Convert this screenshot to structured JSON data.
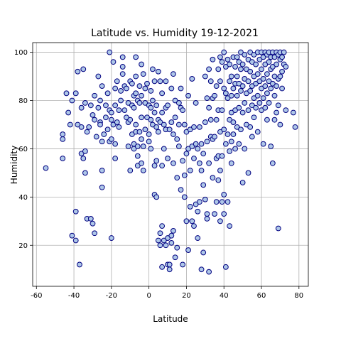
{
  "chart_data": {
    "type": "scatter",
    "title": "Latitude vs. Humidity 19-12-2021",
    "xlabel": "Latitude",
    "ylabel": "Humidity",
    "xlim": [
      -62,
      85
    ],
    "ylim": [
      3,
      104
    ],
    "xticks": [
      -60,
      -40,
      -20,
      0,
      20,
      40,
      60,
      80
    ],
    "yticks": [
      20,
      40,
      60,
      80,
      100
    ],
    "grid": true,
    "legend": "none",
    "colors": {
      "marker_fill": "#aec7e8",
      "marker_edge": "#000080"
    },
    "points": [
      [
        -55,
        52
      ],
      [
        -46,
        56
      ],
      [
        -46,
        64
      ],
      [
        -46,
        66
      ],
      [
        -44,
        83
      ],
      [
        -43,
        75
      ],
      [
        -42,
        70
      ],
      [
        -41,
        80
      ],
      [
        -41,
        24
      ],
      [
        -39,
        83
      ],
      [
        -39,
        34
      ],
      [
        -39,
        22
      ],
      [
        -38,
        70
      ],
      [
        -38,
        92
      ],
      [
        -37,
        12
      ],
      [
        -36,
        58
      ],
      [
        -36,
        69
      ],
      [
        -36,
        77
      ],
      [
        -35,
        56
      ],
      [
        -35,
        93
      ],
      [
        -34,
        79
      ],
      [
        -34,
        50
      ],
      [
        -34,
        59
      ],
      [
        -33,
        31
      ],
      [
        -33,
        67
      ],
      [
        -32,
        69
      ],
      [
        -31,
        78
      ],
      [
        -31,
        31
      ],
      [
        -30,
        29
      ],
      [
        -30,
        74
      ],
      [
        -29,
        72
      ],
      [
        -29,
        82
      ],
      [
        -29,
        25
      ],
      [
        -28,
        65
      ],
      [
        -27,
        90
      ],
      [
        -27,
        77
      ],
      [
        -26,
        71
      ],
      [
        -26,
        80
      ],
      [
        -26,
        70
      ],
      [
        -25,
        44
      ],
      [
        -25,
        86
      ],
      [
        -25,
        63
      ],
      [
        -25,
        51
      ],
      [
        -24,
        66
      ],
      [
        -23,
        73
      ],
      [
        -23,
        78
      ],
      [
        -22,
        68
      ],
      [
        -22,
        83
      ],
      [
        -21,
        63
      ],
      [
        -21,
        100
      ],
      [
        -21,
        76
      ],
      [
        -20,
        75
      ],
      [
        -20,
        72
      ],
      [
        -20,
        64
      ],
      [
        -20,
        23
      ],
      [
        -19,
        96
      ],
      [
        -19,
        70
      ],
      [
        -18,
        85
      ],
      [
        -18,
        78
      ],
      [
        -18,
        56
      ],
      [
        -18,
        62
      ],
      [
        -17,
        88
      ],
      [
        -17,
        71
      ],
      [
        -16,
        69
      ],
      [
        -16,
        76
      ],
      [
        -15,
        80
      ],
      [
        -15,
        84
      ],
      [
        -14,
        94
      ],
      [
        -14,
        91
      ],
      [
        -14,
        98
      ],
      [
        -13,
        86
      ],
      [
        -13,
        76
      ],
      [
        -12,
        85
      ],
      [
        -12,
        73
      ],
      [
        -11,
        79
      ],
      [
        -11,
        71
      ],
      [
        -11,
        61
      ],
      [
        -10,
        88
      ],
      [
        -10,
        51
      ],
      [
        -10,
        72
      ],
      [
        -9,
        87
      ],
      [
        -9,
        78
      ],
      [
        -9,
        66
      ],
      [
        -8,
        82
      ],
      [
        -8,
        77
      ],
      [
        -8,
        62
      ],
      [
        -8,
        60
      ],
      [
        -7,
        98
      ],
      [
        -7,
        90
      ],
      [
        -7,
        83
      ],
      [
        -7,
        70
      ],
      [
        -7,
        67
      ],
      [
        -6,
        80
      ],
      [
        -6,
        61
      ],
      [
        -6,
        57
      ],
      [
        -6,
        53
      ],
      [
        -5,
        86
      ],
      [
        -5,
        79
      ],
      [
        -5,
        67
      ],
      [
        -4,
        95
      ],
      [
        -4,
        82
      ],
      [
        -4,
        73
      ],
      [
        -4,
        64
      ],
      [
        -4,
        54
      ],
      [
        -3,
        91
      ],
      [
        -3,
        61
      ],
      [
        -3,
        51
      ],
      [
        -2,
        85
      ],
      [
        -2,
        79
      ],
      [
        -2,
        68
      ],
      [
        -1,
        87
      ],
      [
        -1,
        73
      ],
      [
        0,
        78
      ],
      [
        0,
        66
      ],
      [
        0,
        63
      ],
      [
        1,
        84
      ],
      [
        1,
        77
      ],
      [
        1,
        72
      ],
      [
        1,
        60
      ],
      [
        2,
        93
      ],
      [
        2,
        80
      ],
      [
        2,
        70
      ],
      [
        3,
        88
      ],
      [
        3,
        75
      ],
      [
        3,
        41
      ],
      [
        3,
        53
      ],
      [
        4,
        78
      ],
      [
        4,
        69
      ],
      [
        4,
        40
      ],
      [
        4,
        55
      ],
      [
        5,
        92
      ],
      [
        5,
        72
      ],
      [
        5,
        67
      ],
      [
        5,
        22
      ],
      [
        6,
        88
      ],
      [
        6,
        71
      ],
      [
        6,
        25
      ],
      [
        6,
        20
      ],
      [
        7,
        83
      ],
      [
        7,
        75
      ],
      [
        7,
        53
      ],
      [
        7,
        28
      ],
      [
        7,
        11
      ],
      [
        8,
        70
      ],
      [
        8,
        60
      ],
      [
        8,
        22
      ],
      [
        9,
        88
      ],
      [
        9,
        77
      ],
      [
        9,
        68
      ],
      [
        9,
        20
      ],
      [
        10,
        78
      ],
      [
        10,
        56
      ],
      [
        10,
        23
      ],
      [
        10,
        12
      ],
      [
        11,
        68
      ],
      [
        11,
        12
      ],
      [
        11,
        10
      ],
      [
        12,
        85
      ],
      [
        12,
        71
      ],
      [
        12,
        24
      ],
      [
        12,
        21
      ],
      [
        13,
        91
      ],
      [
        13,
        66
      ],
      [
        13,
        54
      ],
      [
        13,
        26
      ],
      [
        14,
        80
      ],
      [
        14,
        73
      ],
      [
        14,
        15
      ],
      [
        15,
        64
      ],
      [
        15,
        48
      ],
      [
        15,
        19
      ],
      [
        16,
        79
      ],
      [
        16,
        70
      ],
      [
        16,
        61
      ],
      [
        17,
        85
      ],
      [
        17,
        77
      ],
      [
        17,
        43
      ],
      [
        18,
        76
      ],
      [
        18,
        55
      ],
      [
        18,
        12
      ],
      [
        19,
        70
      ],
      [
        19,
        49
      ],
      [
        19,
        40
      ],
      [
        20,
        67
      ],
      [
        20,
        58
      ],
      [
        20,
        30
      ],
      [
        21,
        82
      ],
      [
        21,
        60
      ],
      [
        21,
        18
      ],
      [
        22,
        68
      ],
      [
        22,
        51
      ],
      [
        22,
        36
      ],
      [
        23,
        89
      ],
      [
        23,
        61
      ],
      [
        23,
        30
      ],
      [
        24,
        69
      ],
      [
        24,
        56
      ],
      [
        24,
        28
      ],
      [
        25,
        79
      ],
      [
        25,
        62
      ],
      [
        25,
        37
      ],
      [
        26,
        60
      ],
      [
        26,
        34
      ],
      [
        26,
        23
      ],
      [
        27,
        69
      ],
      [
        27,
        54
      ],
      [
        27,
        38
      ],
      [
        28,
        62
      ],
      [
        28,
        51
      ],
      [
        28,
        10
      ],
      [
        29,
        58
      ],
      [
        29,
        45
      ],
      [
        29,
        17
      ],
      [
        30,
        90
      ],
      [
        30,
        71
      ],
      [
        30,
        39
      ],
      [
        31,
        81
      ],
      [
        31,
        63
      ],
      [
        31,
        33
      ],
      [
        31,
        31
      ],
      [
        32,
        93
      ],
      [
        32,
        77
      ],
      [
        32,
        54
      ],
      [
        32,
        9
      ],
      [
        33,
        88
      ],
      [
        33,
        72
      ],
      [
        33,
        65
      ],
      [
        34,
        97
      ],
      [
        34,
        81
      ],
      [
        34,
        64
      ],
      [
        34,
        48
      ],
      [
        35,
        82
      ],
      [
        35,
        65
      ],
      [
        35,
        33
      ],
      [
        36,
        86
      ],
      [
        36,
        72
      ],
      [
        36,
        56
      ],
      [
        36,
        38
      ],
      [
        37,
        93
      ],
      [
        37,
        76
      ],
      [
        37,
        57
      ],
      [
        37,
        47
      ],
      [
        38,
        98
      ],
      [
        38,
        88
      ],
      [
        38,
        67
      ],
      [
        38,
        51
      ],
      [
        38,
        30
      ],
      [
        39,
        96
      ],
      [
        39,
        76
      ],
      [
        39,
        57
      ],
      [
        39,
        38
      ],
      [
        40,
        100
      ],
      [
        40,
        85
      ],
      [
        40,
        68
      ],
      [
        40,
        33
      ],
      [
        40,
        41
      ],
      [
        41,
        94
      ],
      [
        41,
        83
      ],
      [
        41,
        62
      ],
      [
        41,
        11
      ],
      [
        42,
        97
      ],
      [
        42,
        81
      ],
      [
        42,
        66
      ],
      [
        42,
        38
      ],
      [
        43,
        95
      ],
      [
        43,
        88
      ],
      [
        43,
        72
      ],
      [
        43,
        59
      ],
      [
        43,
        28
      ],
      [
        44,
        90
      ],
      [
        44,
        82
      ],
      [
        44,
        75
      ],
      [
        44,
        63
      ],
      [
        44,
        54
      ],
      [
        45,
        98
      ],
      [
        45,
        85
      ],
      [
        45,
        71
      ],
      [
        45,
        66
      ],
      [
        46,
        94
      ],
      [
        46,
        87
      ],
      [
        46,
        76
      ],
      [
        46,
        60
      ],
      [
        47,
        98
      ],
      [
        47,
        90
      ],
      [
        47,
        82
      ],
      [
        47,
        69
      ],
      [
        48,
        96
      ],
      [
        48,
        87
      ],
      [
        48,
        77
      ],
      [
        48,
        62
      ],
      [
        49,
        100
      ],
      [
        49,
        93
      ],
      [
        49,
        84
      ],
      [
        49,
        68
      ],
      [
        50,
        95
      ],
      [
        50,
        86
      ],
      [
        50,
        75
      ],
      [
        50,
        46
      ],
      [
        51,
        99
      ],
      [
        51,
        89
      ],
      [
        51,
        79
      ],
      [
        51,
        60
      ],
      [
        52,
        93
      ],
      [
        52,
        83
      ],
      [
        52,
        70
      ],
      [
        53,
        97
      ],
      [
        53,
        88
      ],
      [
        53,
        76
      ],
      [
        53,
        50
      ],
      [
        54,
        100
      ],
      [
        54,
        92
      ],
      [
        54,
        84
      ],
      [
        54,
        69
      ],
      [
        55,
        96
      ],
      [
        55,
        86
      ],
      [
        55,
        78
      ],
      [
        55,
        65
      ],
      [
        56,
        99
      ],
      [
        56,
        90
      ],
      [
        56,
        81
      ],
      [
        56,
        73
      ],
      [
        57,
        95
      ],
      [
        57,
        87
      ],
      [
        57,
        77
      ],
      [
        58,
        100
      ],
      [
        58,
        91
      ],
      [
        58,
        82
      ],
      [
        58,
        67
      ],
      [
        59,
        97
      ],
      [
        59,
        88
      ],
      [
        59,
        79
      ],
      [
        60,
        100
      ],
      [
        60,
        93
      ],
      [
        60,
        85
      ],
      [
        60,
        76
      ],
      [
        61,
        98
      ],
      [
        61,
        89
      ],
      [
        61,
        81
      ],
      [
        61,
        62
      ],
      [
        62,
        100
      ],
      [
        62,
        95
      ],
      [
        62,
        86
      ],
      [
        62,
        77
      ],
      [
        63,
        99
      ],
      [
        63,
        91
      ],
      [
        63,
        83
      ],
      [
        63,
        72
      ],
      [
        64,
        100
      ],
      [
        64,
        96
      ],
      [
        64,
        88
      ],
      [
        64,
        79
      ],
      [
        65,
        98
      ],
      [
        65,
        93
      ],
      [
        65,
        85
      ],
      [
        65,
        61
      ],
      [
        66,
        100
      ],
      [
        66,
        94
      ],
      [
        66,
        87
      ],
      [
        66,
        54
      ],
      [
        67,
        98
      ],
      [
        67,
        90
      ],
      [
        67,
        82
      ],
      [
        67,
        72
      ],
      [
        68,
        100
      ],
      [
        68,
        95
      ],
      [
        68,
        86
      ],
      [
        68,
        75
      ],
      [
        69,
        99
      ],
      [
        69,
        89
      ],
      [
        69,
        78
      ],
      [
        69,
        27
      ],
      [
        70,
        100
      ],
      [
        70,
        97
      ],
      [
        70,
        90
      ],
      [
        70,
        70
      ],
      [
        71,
        98
      ],
      [
        71,
        92
      ],
      [
        71,
        85
      ],
      [
        72,
        100
      ],
      [
        72,
        95
      ],
      [
        73,
        94
      ],
      [
        73,
        76
      ],
      [
        77,
        75
      ],
      [
        78,
        69
      ]
    ]
  }
}
